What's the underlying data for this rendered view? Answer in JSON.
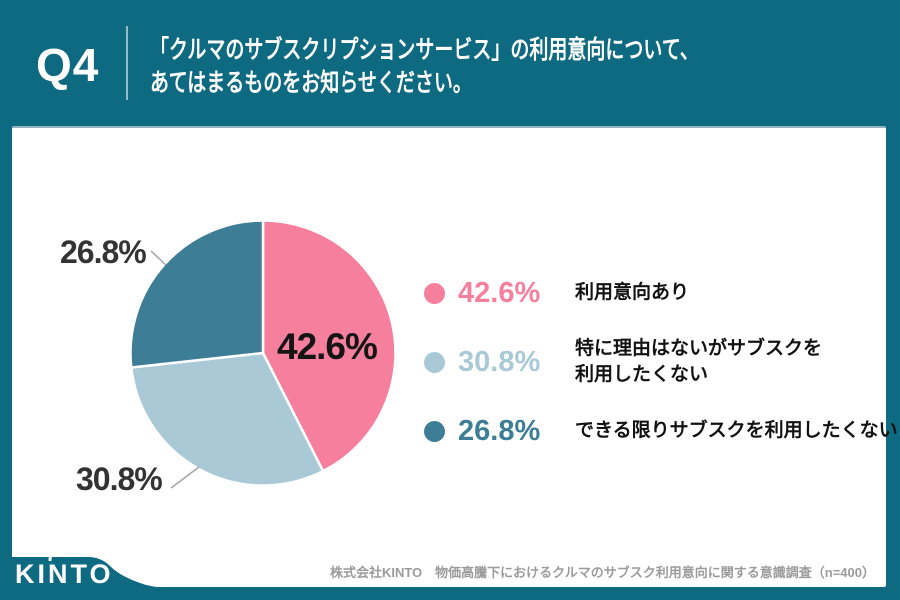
{
  "page": {
    "background_color": "#0e6a81",
    "card_color": "#ffffff"
  },
  "header": {
    "q_label": "Q4",
    "question_line1": "「クルマのサブスクリプションサービス」の利用意向について、",
    "question_line2": "あてはまるものをお知らせください。"
  },
  "chart_data": {
    "type": "pie",
    "title": "「クルマのサブスクリプションサービス」の利用意向について、あてはまるものをお知らせください。",
    "unit": "%",
    "start_angle": "12-o'clock",
    "direction": "clockwise",
    "slices": [
      {
        "label": "利用意向あり",
        "value": 42.6,
        "display": "42.6%",
        "color": "#f67f9e"
      },
      {
        "label": "特に理由はないがサブスクを利用したくない",
        "value": 30.8,
        "display": "30.8%",
        "color": "#a9c9d6"
      },
      {
        "label": "できる限りサブスクを利用したくない",
        "value": 26.8,
        "display": "26.8%",
        "color": "#3e7d96"
      }
    ]
  },
  "legend": {
    "items": [
      {
        "line1": "利用意向あり",
        "line2": ""
      },
      {
        "line1": "特に理由はないがサブスクを",
        "line2": "利用したくない"
      },
      {
        "line1": "できる限りサブスクを利用したくない",
        "line2": ""
      }
    ]
  },
  "footer": {
    "logo_text": "KINTO",
    "source_text": "株式会社KINTO　物価高騰下におけるクルマのサブスク利用意向に関する意識調査（n=400）"
  }
}
